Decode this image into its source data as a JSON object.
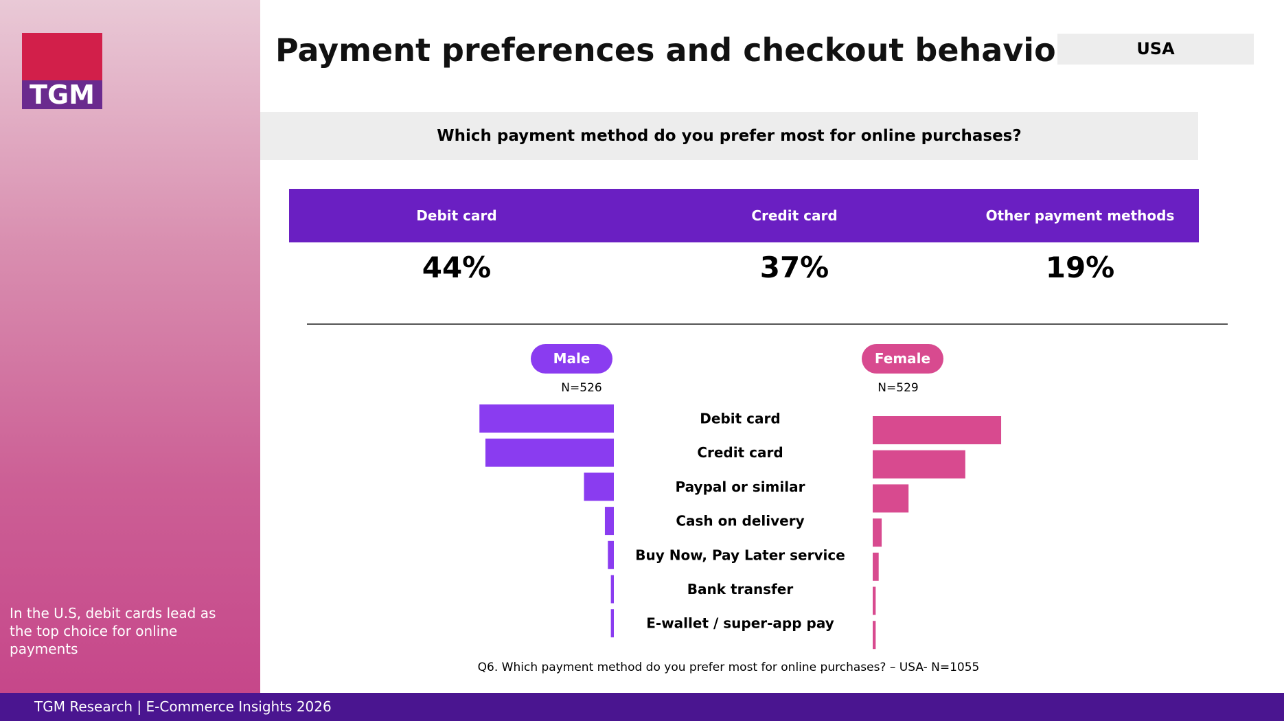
{
  "logo": "TGM",
  "caption": "In the U.S, debit cards lead as the top choice for online payments",
  "header": {
    "title": "Payment preferences and checkout behavior",
    "country": "USA"
  },
  "question": "Which payment method do you prefer most for online purchases?",
  "summary": [
    {
      "label": "Debit card",
      "value": "44%"
    },
    {
      "label": "Credit card",
      "value": "37%"
    },
    {
      "label": "Other payment methods",
      "value": "19%"
    }
  ],
  "chart_data": {
    "type": "butterfly-bar",
    "categories": [
      "Debit card",
      "Credit card",
      "Paypal or similar",
      "Cash on delivery",
      "Buy Now, Pay Later service",
      "Bank transfer",
      "E-wallet / super-app pay"
    ],
    "series": [
      {
        "name": "Male",
        "sample": "N=526",
        "color": "#8a3cf0",
        "values": [
          45,
          43,
          10,
          3,
          2,
          1,
          1
        ]
      },
      {
        "name": "Female",
        "sample": "N=529",
        "color": "#d84a8f",
        "values": [
          43,
          31,
          12,
          3,
          2,
          1,
          1
        ]
      }
    ],
    "footnote": "Q6. Which payment method do you prefer most for online purchases? – USA- N=1055"
  },
  "footer": "TGM Research | E-Commerce Insights 2026"
}
